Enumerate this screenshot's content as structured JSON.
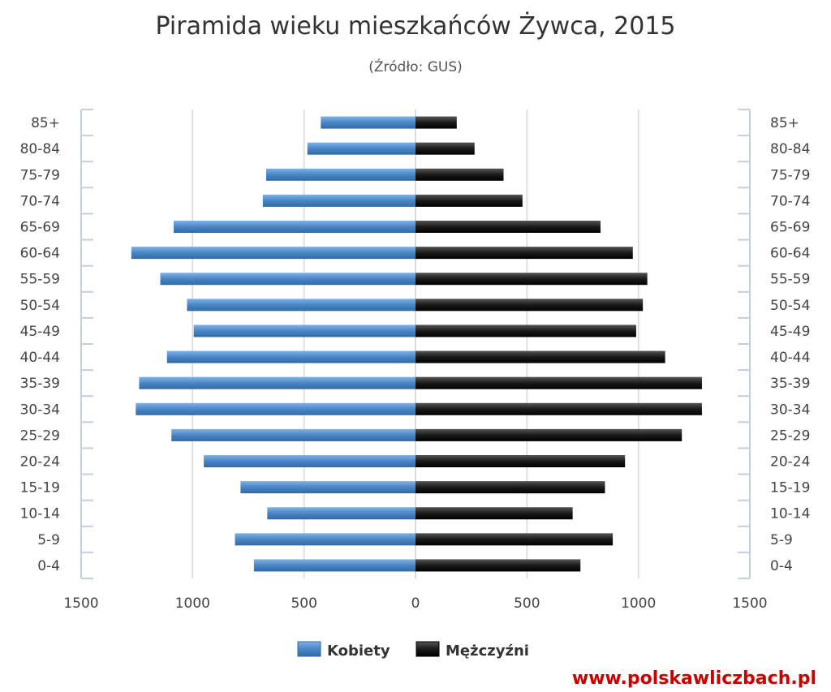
{
  "chart_data": {
    "type": "bar",
    "orientation": "horizontal-pyramid",
    "title": "Piramida wieku mieszkańców Żywca, 2015",
    "subtitle": "(Źródło: GUS)",
    "categories": [
      "0-4",
      "5-9",
      "10-14",
      "15-19",
      "20-24",
      "25-29",
      "30-34",
      "35-39",
      "40-44",
      "45-49",
      "50-54",
      "55-59",
      "60-64",
      "65-69",
      "70-74",
      "75-79",
      "80-84",
      "85+"
    ],
    "series": [
      {
        "name": "Kobiety",
        "color": "#4a86c5",
        "values": [
          725,
          810,
          665,
          785,
          950,
          1095,
          1255,
          1240,
          1115,
          995,
          1025,
          1145,
          1275,
          1085,
          685,
          670,
          485,
          425
        ]
      },
      {
        "name": "Mężczyźni",
        "color": "#1a1a1a",
        "values": [
          740,
          885,
          705,
          850,
          940,
          1195,
          1285,
          1285,
          1120,
          990,
          1020,
          1040,
          975,
          830,
          480,
          395,
          265,
          185
        ]
      }
    ],
    "xlim": [
      -1500,
      1500
    ],
    "xticks": [
      "1500",
      "1000",
      "500",
      "0",
      "500",
      "1000",
      "1500"
    ],
    "grid": true,
    "legend_position": "bottom"
  },
  "footer": {
    "credit": "www.polskawliczbach.pl"
  }
}
